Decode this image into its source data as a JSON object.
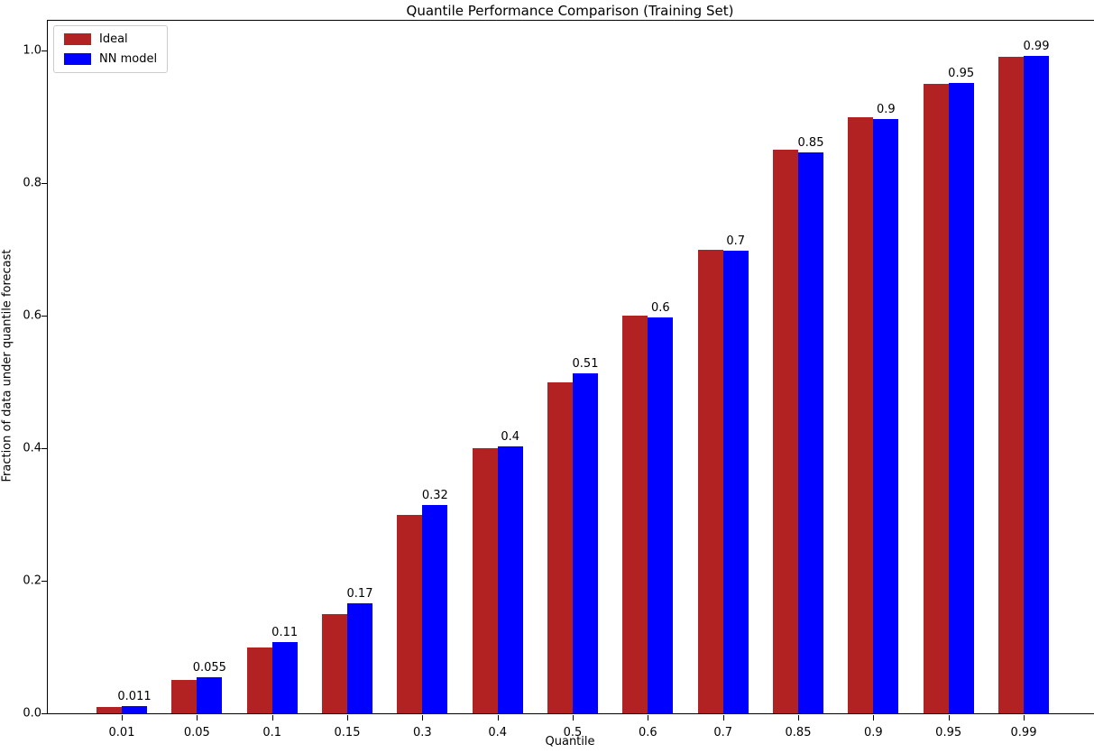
{
  "chart_data": {
    "type": "bar",
    "title": "Quantile Performance Comparison (Training Set)",
    "xlabel": "Quantile",
    "ylabel": "Fraction of data under quantile forecast",
    "categories": [
      "0.01",
      "0.05",
      "0.1",
      "0.15",
      "0.3",
      "0.4",
      "0.5",
      "0.6",
      "0.7",
      "0.85",
      "0.9",
      "0.95",
      "0.99"
    ],
    "series": [
      {
        "name": "Ideal",
        "color": "#b22222",
        "values": [
          0.01,
          0.05,
          0.1,
          0.15,
          0.3,
          0.4,
          0.5,
          0.6,
          0.7,
          0.85,
          0.9,
          0.95,
          0.99
        ]
      },
      {
        "name": "NN model",
        "color": "#0000ff",
        "values": [
          0.011,
          0.055,
          0.107,
          0.166,
          0.315,
          0.403,
          0.513,
          0.597,
          0.698,
          0.847,
          0.897,
          0.951,
          0.992
        ],
        "bar_labels": [
          "0.011",
          "0.055",
          "0.11",
          "0.17",
          "0.32",
          "0.4",
          "0.51",
          "0.6",
          "0.7",
          "0.85",
          "0.9",
          "0.95",
          "0.99"
        ]
      }
    ],
    "ytick_labels": [
      "0.0",
      "0.2",
      "0.4",
      "0.6",
      "0.8",
      "1.0"
    ],
    "yticks": [
      0.0,
      0.2,
      0.4,
      0.6,
      0.8,
      1.0
    ],
    "ylim": [
      0,
      1.045
    ],
    "grid": false,
    "legend": {
      "position": "upper-left",
      "entries": [
        "Ideal",
        "NN model"
      ]
    },
    "background_color": "#ffffff",
    "text_color": "#000000"
  }
}
